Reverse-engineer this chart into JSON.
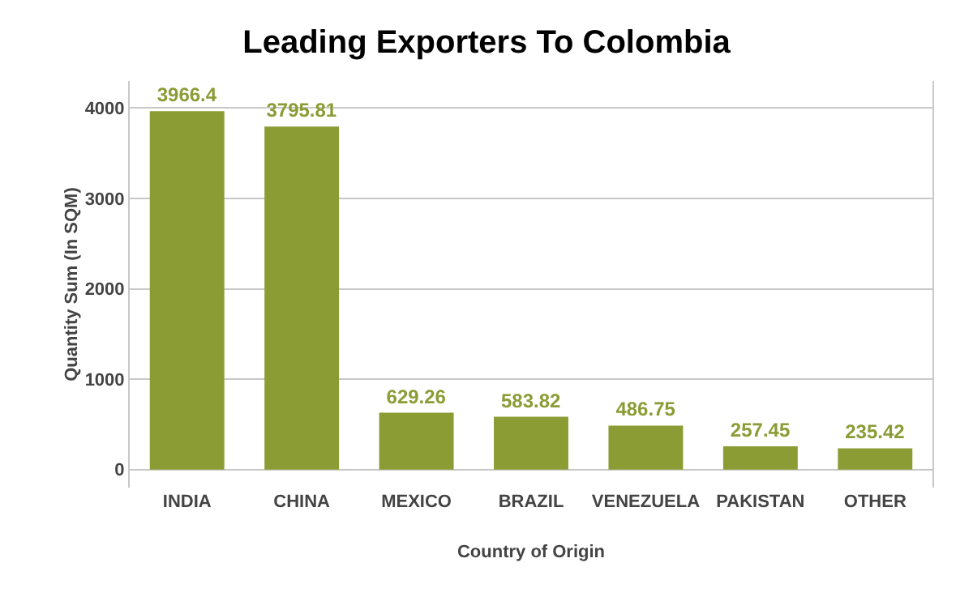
{
  "chart_data": {
    "type": "bar",
    "title": "Leading Exporters To Colombia",
    "xlabel": "Country of Origin",
    "ylabel": "Quantity Sum (In SQM)",
    "categories": [
      "INDIA",
      "CHINA",
      "MEXICO",
      "BRAZIL",
      "VENEZUELA",
      "PAKISTAN",
      "OTHER"
    ],
    "values": [
      3966.4,
      3795.81,
      629.26,
      583.82,
      486.75,
      257.45,
      235.42
    ],
    "color": "#8b9c35",
    "ylim": [
      -200,
      4300
    ],
    "yticks": [
      0,
      1000,
      2000,
      3000,
      4000
    ],
    "grid": "y",
    "data_labels": true
  }
}
